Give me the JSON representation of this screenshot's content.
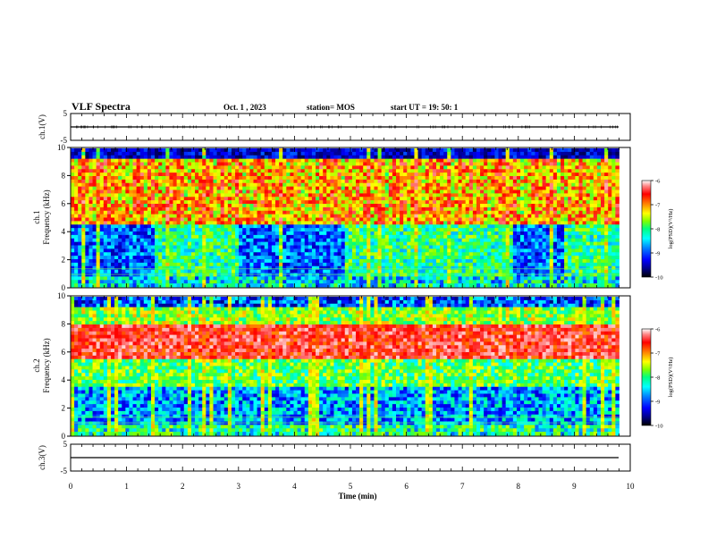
{
  "header": {
    "title": "VLF Spectra",
    "date": "Oct. 1 , 2023",
    "station": "station= MOS",
    "start_ut": "start  UT =   19: 50: 1"
  },
  "chart_data": [
    {
      "panel": "ch1-waveform",
      "type": "line",
      "ylabel": "ch.1(V)",
      "ylim": [
        -5,
        5
      ],
      "yticks": [
        "5",
        "-5"
      ],
      "baseline_value": 0
    },
    {
      "panel": "ch1-spectrogram",
      "type": "heatmap",
      "ylabel": "ch.1\nFrequency (kHz)",
      "ylim": [
        0,
        10
      ],
      "yticks": [
        "0",
        "2",
        "4",
        "6",
        "8",
        "10"
      ],
      "colorbar": {
        "label": "log(PSD)(V²/Hz)",
        "range": [
          -10,
          -6
        ],
        "ticks": [
          "-6",
          "-7",
          "-8",
          "-9",
          "-10"
        ]
      },
      "note_band_khz": [
        2,
        10
      ]
    },
    {
      "panel": "ch2-spectrogram",
      "type": "heatmap",
      "ylabel": "ch.2\nFrequency (kHz)",
      "ylim": [
        0,
        10
      ],
      "yticks": [
        "0",
        "2",
        "4",
        "6",
        "8",
        "10"
      ],
      "colorbar": {
        "label": "log(PSD)(V²/Hz)",
        "range": [
          -10,
          -6
        ],
        "ticks": [
          "-6",
          "-7",
          "-8",
          "-9",
          "-10"
        ]
      },
      "intense_band_khz": [
        5.5,
        8
      ]
    },
    {
      "panel": "ch3-waveform",
      "type": "line",
      "ylabel": "ch.3(V)",
      "ylim": [
        -5,
        5
      ],
      "yticks": [
        "5",
        "-5"
      ],
      "baseline_value": 0
    }
  ],
  "x_axis": {
    "label": "Time (min)",
    "xlim": [
      0,
      10
    ],
    "ticks": [
      "0",
      "1",
      "2",
      "3",
      "4",
      "5",
      "6",
      "7",
      "8",
      "9",
      "10"
    ],
    "data_end_min": 9.8
  },
  "colormap": [
    "#000000",
    "#00008c",
    "#0000ff",
    "#0080ff",
    "#00ffff",
    "#00ff80",
    "#80ff00",
    "#ffff00",
    "#ff8000",
    "#ff0000",
    "#ff8080",
    "#ffffff"
  ]
}
